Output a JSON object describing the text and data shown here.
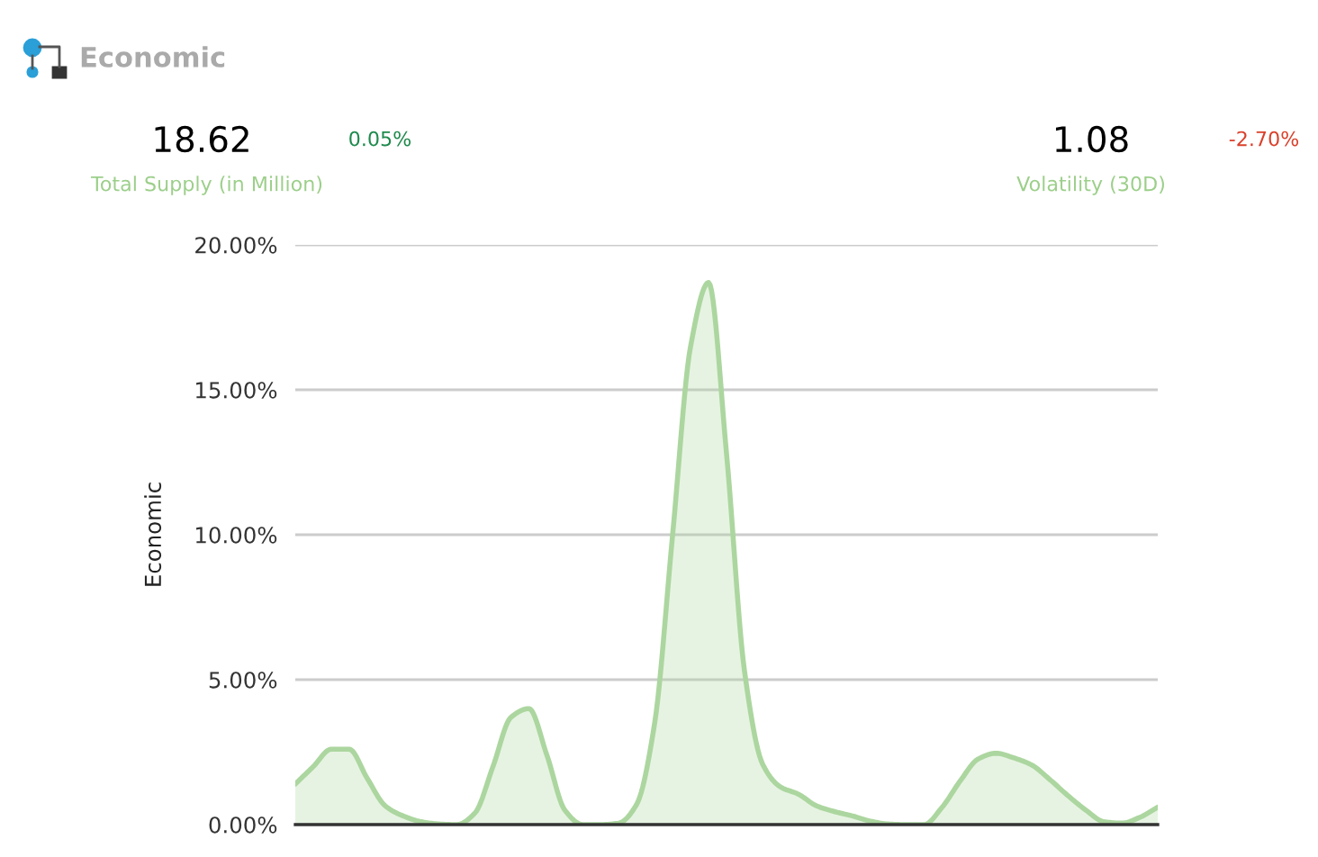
{
  "chart_data": {
    "type": "area",
    "title": "Economic",
    "ylabel": "Economic",
    "annotations": [
      "18.62",
      "0.05%",
      "Total Supply (in Million)",
      "1.08",
      "-2.70%",
      "Volatility (30D)"
    ],
    "categories": [
      null,
      null,
      null,
      null,
      null,
      null,
      null,
      null,
      null,
      null,
      null,
      null,
      null,
      null,
      null,
      null,
      null,
      null,
      null,
      null,
      null,
      null,
      null,
      null,
      null,
      null,
      null,
      null,
      null,
      null,
      null,
      null,
      null,
      null,
      null,
      null,
      null,
      null,
      null,
      null,
      null,
      null,
      null,
      null,
      null,
      null,
      null,
      null,
      null
    ],
    "series": [
      {
        "color": "#acd69f",
        "values": [
          1.4,
          2.0,
          2.6,
          2.6,
          1.6,
          0.65,
          0.3,
          0.1,
          0.02,
          0,
          0.4,
          2.0,
          3.7,
          4.0,
          2.4,
          0.5,
          0,
          0,
          0.05,
          0.7,
          3.5,
          10.0,
          16.5,
          18.7,
          12.8,
          5.3,
          2.1,
          1.3,
          1.05,
          0.65,
          0.45,
          0.3,
          0.12,
          0.02,
          0,
          0,
          0.6,
          1.5,
          2.26,
          2.46,
          2.3,
          2.05,
          1.55,
          1.0,
          0.5,
          0.1,
          0.05,
          0.25,
          0.6
        ]
      }
    ],
    "ylim": [
      0,
      20
    ],
    "yticks": [
      {
        "value": 0,
        "label": "0.00%"
      },
      {
        "value": 5,
        "label": "5.00%"
      },
      {
        "value": 10,
        "label": "10.00%"
      },
      {
        "value": 15,
        "label": "15.00%"
      },
      {
        "value": 20,
        "label": "20.00%"
      }
    ],
    "grid": "y",
    "tick_labels": "y"
  }
}
